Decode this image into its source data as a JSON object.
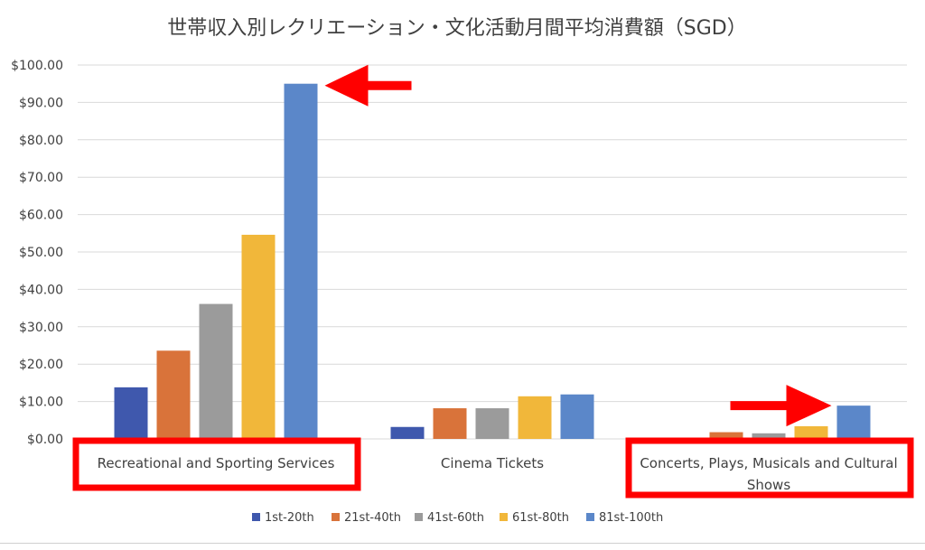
{
  "colors": {
    "series": [
      "#3F58AD",
      "#D9733A",
      "#9B9B9B",
      "#F1B73A",
      "#5B87C9"
    ],
    "grid": "#d9d9d9",
    "text": "#404040",
    "highlight": "#ff0000",
    "arrow": "#ff0000"
  },
  "chart_data": {
    "type": "bar",
    "title": "世帯収入別レクリエーション・文化活動月間平均消費額（SGD）",
    "xlabel": "",
    "ylabel": "",
    "ylim": [
      0,
      100
    ],
    "y_tick_values": [
      0,
      10,
      20,
      30,
      40,
      50,
      60,
      70,
      80,
      90,
      100
    ],
    "y_tick_labels": [
      "$0.00",
      "$10.00",
      "$20.00",
      "$30.00",
      "$40.00",
      "$50.00",
      "$60.00",
      "$70.00",
      "$80.00",
      "$90.00",
      "$100.00"
    ],
    "grid": true,
    "legend_position": "bottom",
    "categories": [
      "Recreational and Sporting Services",
      "Cinema Tickets",
      "Concerts, Plays, Musicals and Cultural Shows"
    ],
    "category_label_lines": [
      [
        "Recreational and Sporting Services"
      ],
      [
        "Cinema Tickets"
      ],
      [
        "Concerts, Plays, Musicals and Cultural",
        "Shows"
      ]
    ],
    "series": [
      {
        "name": "1st-20th",
        "values": [
          13.8,
          3.2,
          0.0
        ]
      },
      {
        "name": "21st-40th",
        "values": [
          23.6,
          8.2,
          1.8
        ]
      },
      {
        "name": "41st-60th",
        "values": [
          36.1,
          8.2,
          1.5
        ]
      },
      {
        "name": "61st-80th",
        "values": [
          54.6,
          11.4,
          3.4
        ]
      },
      {
        "name": "81st-100th",
        "values": [
          95.0,
          11.9,
          8.9
        ]
      }
    ],
    "annotations": [
      {
        "type": "arrow",
        "category": 0,
        "series": 4,
        "direction": "left"
      },
      {
        "type": "arrow",
        "category": 2,
        "series": 4,
        "direction": "right"
      },
      {
        "type": "highlight-box",
        "category": 0
      },
      {
        "type": "highlight-box",
        "category": 2
      }
    ]
  }
}
